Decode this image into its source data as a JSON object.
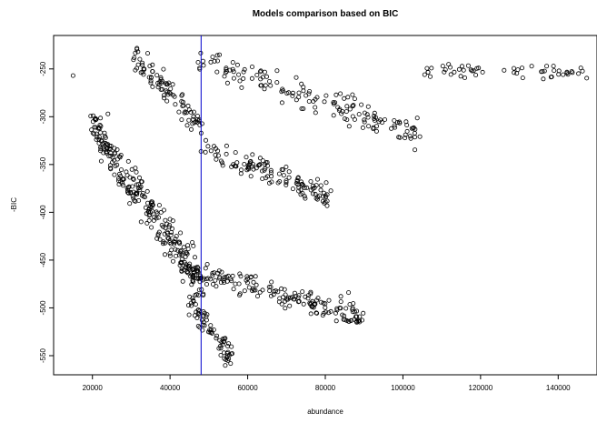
{
  "chart_data": {
    "type": "scatter",
    "title": "Models comparison based on BIC",
    "xlabel": "abundance",
    "ylabel": "-BIC",
    "xlim": [
      10000,
      150000
    ],
    "ylim": [
      -570,
      -215
    ],
    "x_ticks": [
      20000,
      40000,
      60000,
      80000,
      100000,
      120000,
      140000
    ],
    "y_ticks": [
      -250,
      -300,
      -350,
      -400,
      -450,
      -500,
      -550
    ],
    "x_tick_labels": [
      "20000",
      "40000",
      "60000",
      "80000",
      "100000",
      "120000",
      "140000"
    ],
    "y_tick_labels": [
      "-250",
      "-300",
      "-350",
      "-400",
      "-450",
      "-500",
      "-550"
    ],
    "grid": false,
    "legend": "none",
    "marker": "open-circle",
    "marker_color": "#000000",
    "reference_line": {
      "orientation": "vertical",
      "x": 48000,
      "color": "#0000cc"
    },
    "clusters": [
      {
        "name": "top-left band",
        "x_range": [
          31000,
          49000
        ],
        "y_center": [
          -240,
          -315
        ],
        "count": 90
      },
      {
        "name": "top-right band",
        "x_range": [
          48000,
          105000
        ],
        "y_center": [
          -240,
          -320
        ],
        "count": 150
      },
      {
        "name": "far-right band",
        "x_range": [
          105000,
          148000
        ],
        "y_center": [
          -250,
          -255
        ],
        "count": 55
      },
      {
        "name": "mid-upper band",
        "x_range": [
          48000,
          81000
        ],
        "y_center": [
          -330,
          -385
        ],
        "count": 120
      },
      {
        "name": "left cloud",
        "x_range": [
          20000,
          48000
        ],
        "y_center": [
          -310,
          -475
        ],
        "count": 260
      },
      {
        "name": "lower band",
        "x_range": [
          45000,
          90000
        ],
        "y_center": [
          -460,
          -510
        ],
        "count": 170
      },
      {
        "name": "bottom tail",
        "x_range": [
          45000,
          56000
        ],
        "y_center": [
          -490,
          -555
        ],
        "count": 70
      }
    ],
    "outliers": [
      {
        "x": 15000,
        "y": -257
      },
      {
        "x": 24000,
        "y": -297
      },
      {
        "x": 20500,
        "y": -311
      },
      {
        "x": 20400,
        "y": -318
      },
      {
        "x": 84000,
        "y": -488
      },
      {
        "x": 86000,
        "y": -484
      }
    ]
  }
}
